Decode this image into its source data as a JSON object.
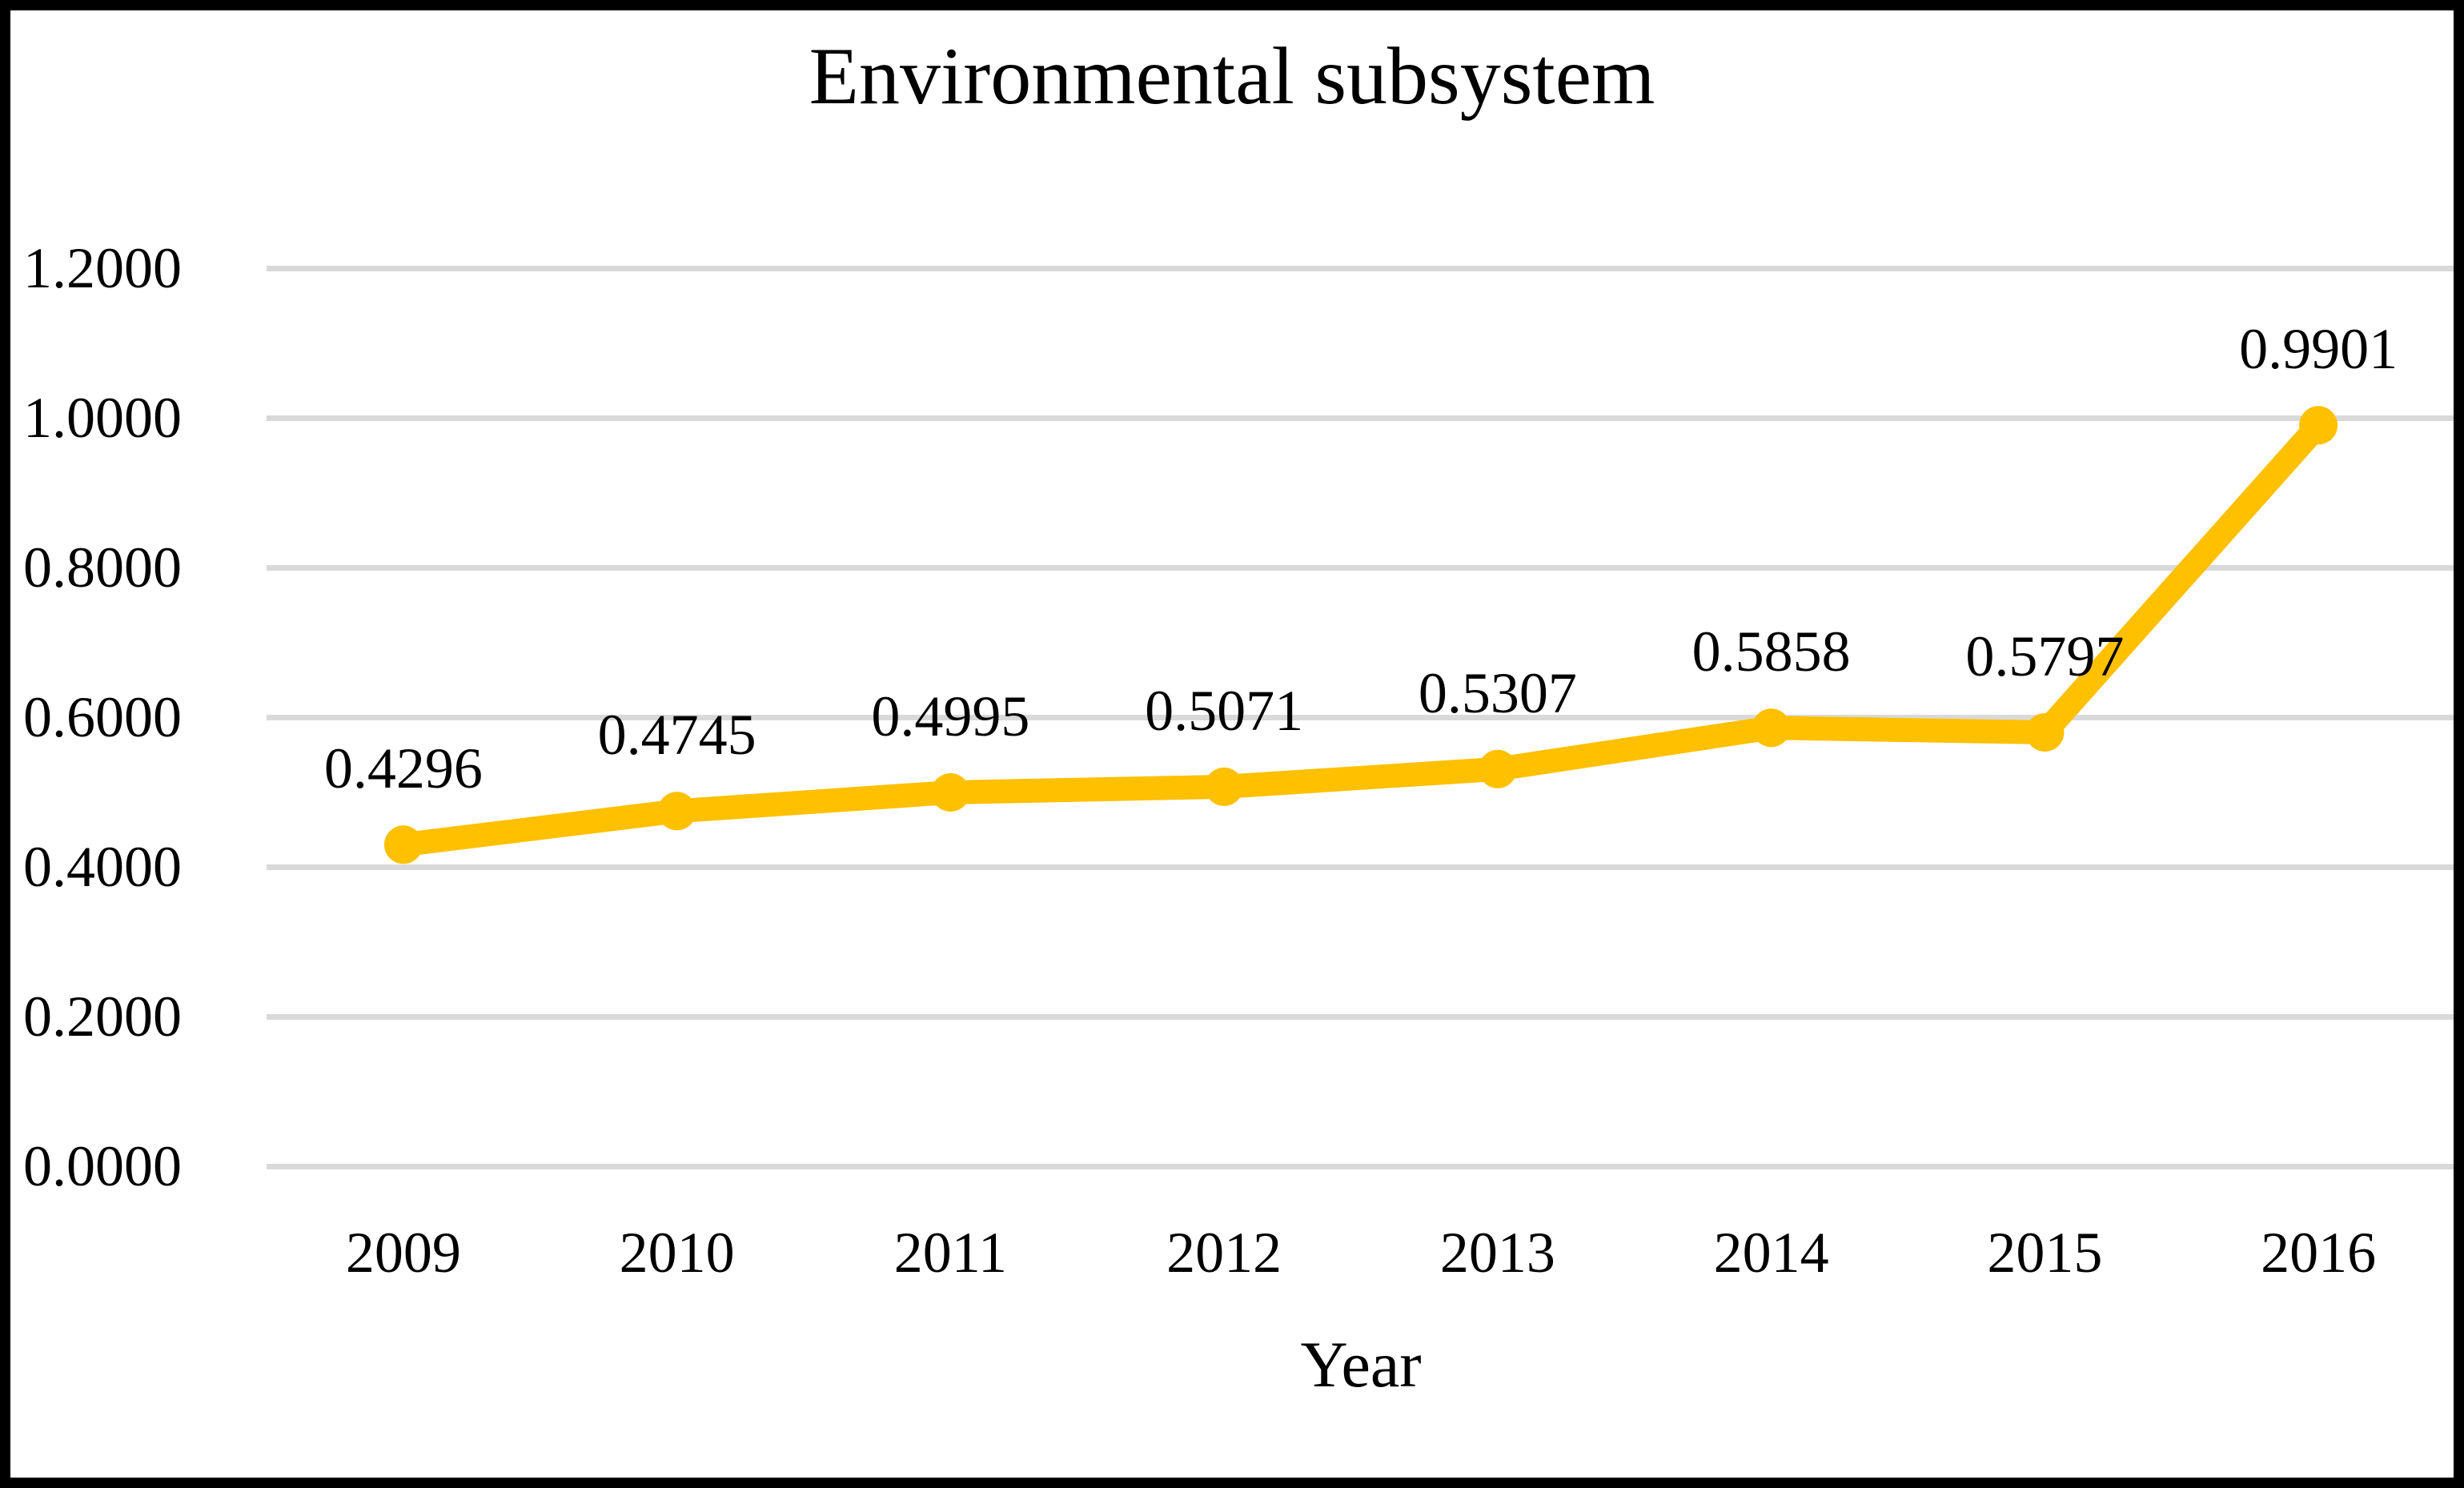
{
  "colors": {
    "series_line": "#FFC000",
    "marker_fill": "#FFC000",
    "gridline": "#D9D9D9",
    "text": "#000000",
    "frame_border": "#000000",
    "background": "#FFFFFF"
  },
  "chart_data": {
    "type": "line",
    "title": "Environmental subsystem",
    "xlabel": "Year",
    "ylabel": "",
    "categories": [
      "2009",
      "2010",
      "2011",
      "2012",
      "2013",
      "2014",
      "2015",
      "2016"
    ],
    "series": [
      {
        "name": "Environmental subsystem",
        "values": [
          0.4296,
          0.4745,
          0.4995,
          0.5071,
          0.5307,
          0.5858,
          0.5797,
          0.9901
        ]
      }
    ],
    "data_labels": [
      "0.4296",
      "0.4745",
      "0.4995",
      "0.5071",
      "0.5307",
      "0.5858",
      "0.5797",
      "0.9901"
    ],
    "ylim": [
      0.0,
      1.2
    ],
    "ytick_values": [
      1.2,
      1.0,
      0.8,
      0.6,
      0.4,
      0.2,
      0.0
    ],
    "ytick_labels": [
      "1.2000",
      "1.0000",
      "0.8000",
      "0.6000",
      "0.4000",
      "0.2000",
      "0.0000"
    ],
    "grid": "horizontal",
    "legend": "none",
    "marker": "circle"
  }
}
